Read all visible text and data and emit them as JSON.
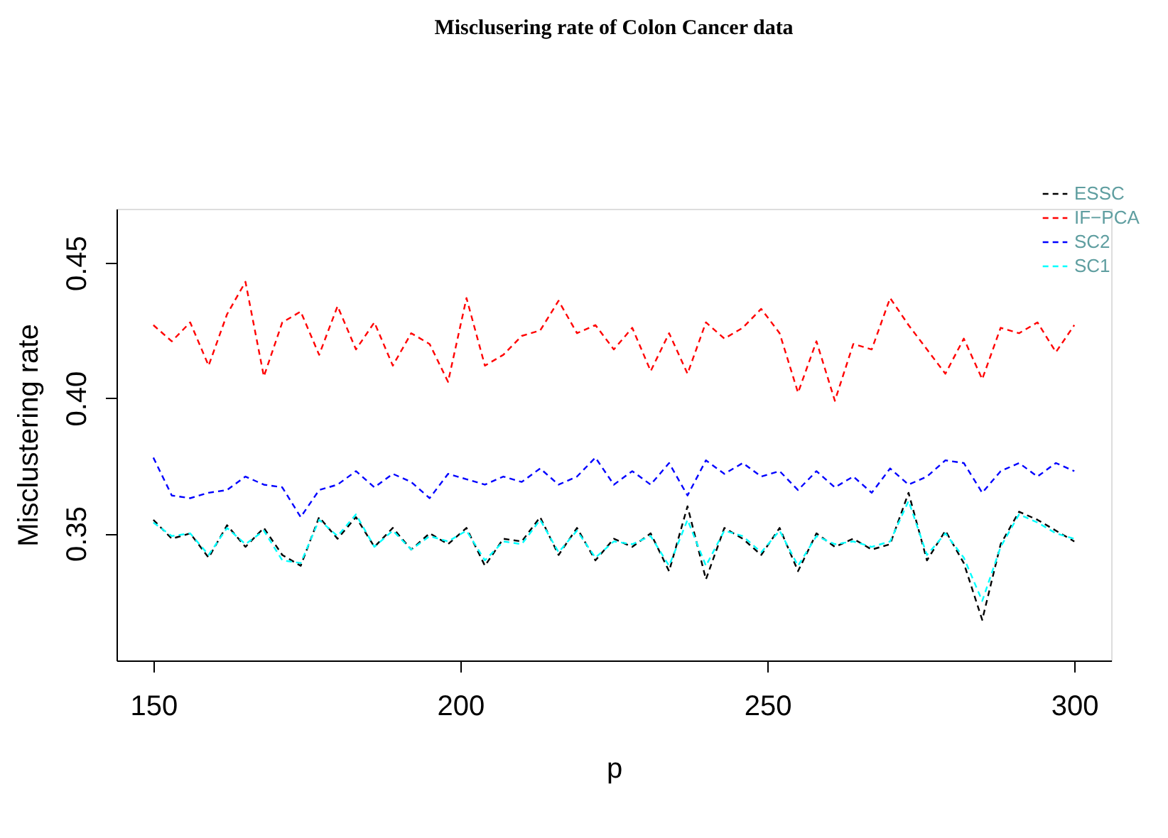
{
  "chart_data": {
    "type": "line",
    "title": "Misclusering rate of Colon Cancer data",
    "xlabel": "p",
    "ylabel": "Misclustering  rate",
    "x": [
      150,
      153,
      156,
      159,
      162,
      165,
      168,
      171,
      174,
      177,
      180,
      183,
      186,
      189,
      192,
      195,
      198,
      201,
      204,
      207,
      210,
      213,
      216,
      219,
      222,
      225,
      228,
      231,
      234,
      237,
      240,
      243,
      246,
      249,
      252,
      255,
      258,
      261,
      264,
      267,
      270,
      273,
      276,
      279,
      282,
      285,
      288,
      291,
      294,
      297,
      300
    ],
    "series": [
      {
        "name": "ESSC",
        "color": "#000000",
        "values": [
          0.355,
          0.348,
          0.35,
          0.341,
          0.353,
          0.345,
          0.352,
          0.342,
          0.338,
          0.356,
          0.348,
          0.356,
          0.345,
          0.352,
          0.344,
          0.35,
          0.346,
          0.352,
          0.338,
          0.348,
          0.347,
          0.356,
          0.342,
          0.352,
          0.34,
          0.348,
          0.345,
          0.35,
          0.336,
          0.36,
          0.333,
          0.352,
          0.348,
          0.342,
          0.352,
          0.336,
          0.35,
          0.345,
          0.348,
          0.344,
          0.346,
          0.365,
          0.34,
          0.351,
          0.339,
          0.318,
          0.346,
          0.358,
          0.355,
          0.351,
          0.347
        ]
      },
      {
        "name": "IF−PCA",
        "color": "#ff0000",
        "values": [
          0.427,
          0.421,
          0.428,
          0.412,
          0.431,
          0.443,
          0.408,
          0.428,
          0.432,
          0.416,
          0.434,
          0.418,
          0.428,
          0.412,
          0.424,
          0.42,
          0.406,
          0.437,
          0.412,
          0.416,
          0.423,
          0.425,
          0.436,
          0.424,
          0.427,
          0.418,
          0.426,
          0.41,
          0.424,
          0.409,
          0.428,
          0.422,
          0.426,
          0.433,
          0.424,
          0.402,
          0.421,
          0.399,
          0.42,
          0.418,
          0.437,
          0.427,
          0.418,
          0.409,
          0.422,
          0.407,
          0.426,
          0.424,
          0.428,
          0.417,
          0.427
        ]
      },
      {
        "name": "SC2",
        "color": "#0000ff",
        "values": [
          0.378,
          0.364,
          0.363,
          0.365,
          0.366,
          0.371,
          0.368,
          0.367,
          0.356,
          0.366,
          0.368,
          0.373,
          0.367,
          0.372,
          0.369,
          0.363,
          0.372,
          0.37,
          0.368,
          0.371,
          0.369,
          0.374,
          0.368,
          0.371,
          0.378,
          0.368,
          0.373,
          0.368,
          0.376,
          0.364,
          0.377,
          0.372,
          0.376,
          0.371,
          0.373,
          0.366,
          0.373,
          0.367,
          0.371,
          0.365,
          0.374,
          0.368,
          0.371,
          0.377,
          0.376,
          0.365,
          0.373,
          0.376,
          0.371,
          0.376,
          0.373
        ]
      },
      {
        "name": "SC1",
        "color": "#00ffff",
        "values": [
          0.354,
          0.349,
          0.35,
          0.342,
          0.352,
          0.346,
          0.351,
          0.34,
          0.339,
          0.355,
          0.349,
          0.357,
          0.345,
          0.351,
          0.344,
          0.349,
          0.347,
          0.351,
          0.34,
          0.347,
          0.346,
          0.355,
          0.343,
          0.351,
          0.341,
          0.347,
          0.346,
          0.349,
          0.338,
          0.355,
          0.338,
          0.351,
          0.349,
          0.343,
          0.351,
          0.338,
          0.349,
          0.346,
          0.347,
          0.345,
          0.347,
          0.362,
          0.342,
          0.35,
          0.341,
          0.325,
          0.345,
          0.357,
          0.354,
          0.35,
          0.348
        ]
      }
    ],
    "xlim": [
      144,
      306
    ],
    "xticks": [
      150,
      200,
      250,
      300
    ],
    "ylim": [
      0.303,
      0.47
    ],
    "yticks": [
      {
        "value": 0.35,
        "label": "0.35"
      },
      {
        "value": 0.4,
        "label": "0.40"
      },
      {
        "value": 0.45,
        "label": "0.45"
      }
    ],
    "line_style": "dashed",
    "marker": "none",
    "grid": false,
    "legend": "top right"
  }
}
